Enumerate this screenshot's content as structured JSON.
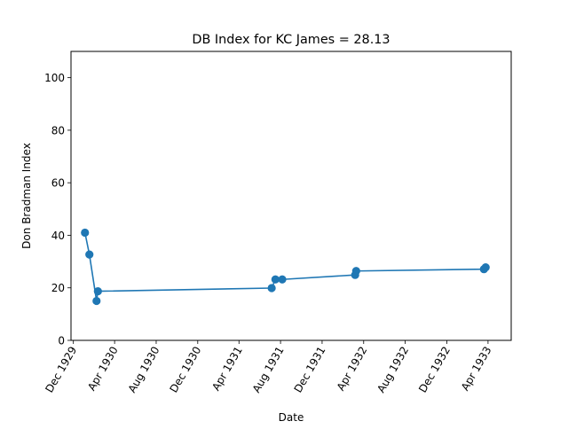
{
  "chart_data": {
    "type": "line",
    "title": "DB Index for KC James = 28.13",
    "xlabel": "Date",
    "ylabel": "Don Bradman Index",
    "xlim": [
      "1929-11-24",
      "1933-06-08"
    ],
    "ylim": [
      0,
      110
    ],
    "x_ticks": [
      {
        "date": "1929-12-01",
        "label": "Dec 1929"
      },
      {
        "date": "1930-04-01",
        "label": "Apr 1930"
      },
      {
        "date": "1930-08-01",
        "label": "Aug 1930"
      },
      {
        "date": "1930-12-01",
        "label": "Dec 1930"
      },
      {
        "date": "1931-04-01",
        "label": "Apr 1931"
      },
      {
        "date": "1931-08-01",
        "label": "Aug 1931"
      },
      {
        "date": "1931-12-01",
        "label": "Dec 1931"
      },
      {
        "date": "1932-04-01",
        "label": "Apr 1932"
      },
      {
        "date": "1932-08-01",
        "label": "Aug 1932"
      },
      {
        "date": "1932-12-01",
        "label": "Dec 1932"
      },
      {
        "date": "1933-04-01",
        "label": "Apr 1933"
      }
    ],
    "y_ticks": [
      0,
      20,
      40,
      60,
      80,
      100
    ],
    "series": [
      {
        "color": "#1f77b4",
        "points": [
          {
            "x": "1930-01-04",
            "y": 41.0
          },
          {
            "x": "1930-01-17",
            "y": 32.7
          },
          {
            "x": "1930-02-07",
            "y": 15.0
          },
          {
            "x": "1930-02-11",
            "y": 18.7
          },
          {
            "x": "1931-07-06",
            "y": 19.9
          },
          {
            "x": "1931-07-17",
            "y": 23.2
          },
          {
            "x": "1931-08-06",
            "y": 23.2
          },
          {
            "x": "1932-03-07",
            "y": 24.9
          },
          {
            "x": "1932-03-10",
            "y": 26.4
          },
          {
            "x": "1933-03-20",
            "y": 27.1
          },
          {
            "x": "1933-03-25",
            "y": 27.8
          }
        ]
      }
    ]
  }
}
